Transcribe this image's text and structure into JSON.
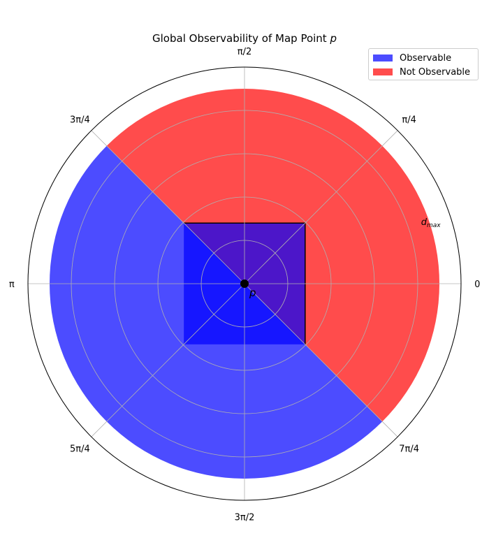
{
  "chart_data": {
    "type": "polar-area",
    "title": "Global Observability of Map Point p",
    "title_prefix": "Global Observability of Map Point ",
    "title_italic": "p",
    "point_label": "p",
    "radial_label_main": "d",
    "radial_label_sub": "max",
    "angle_ticks": [
      "0",
      "π/4",
      "π/2",
      "3π/4",
      "π",
      "5π/4",
      "3π/2",
      "7π/4"
    ],
    "angle_tick_degrees": [
      0,
      45,
      90,
      135,
      180,
      225,
      270,
      315
    ],
    "r_max": 1.0,
    "d_max": 0.9,
    "r_grid": [
      0.2,
      0.4,
      0.6,
      0.8,
      1.0
    ],
    "inner_square_halfwidth": 0.28,
    "series": [
      {
        "name": "Observable",
        "color": "#0000ff",
        "alpha": 0.7,
        "theta_start_deg": 135,
        "theta_end_deg": 315
      },
      {
        "name": "Not Observable",
        "color": "#ff0000",
        "alpha": 0.7,
        "theta_start_deg": -45,
        "theta_end_deg": 135
      }
    ],
    "legend": {
      "position": "top-right",
      "entries": [
        {
          "label": "Observable",
          "color": "#0000ff"
        },
        {
          "label": "Not Observable",
          "color": "#ff0000"
        }
      ]
    },
    "grid": true
  }
}
